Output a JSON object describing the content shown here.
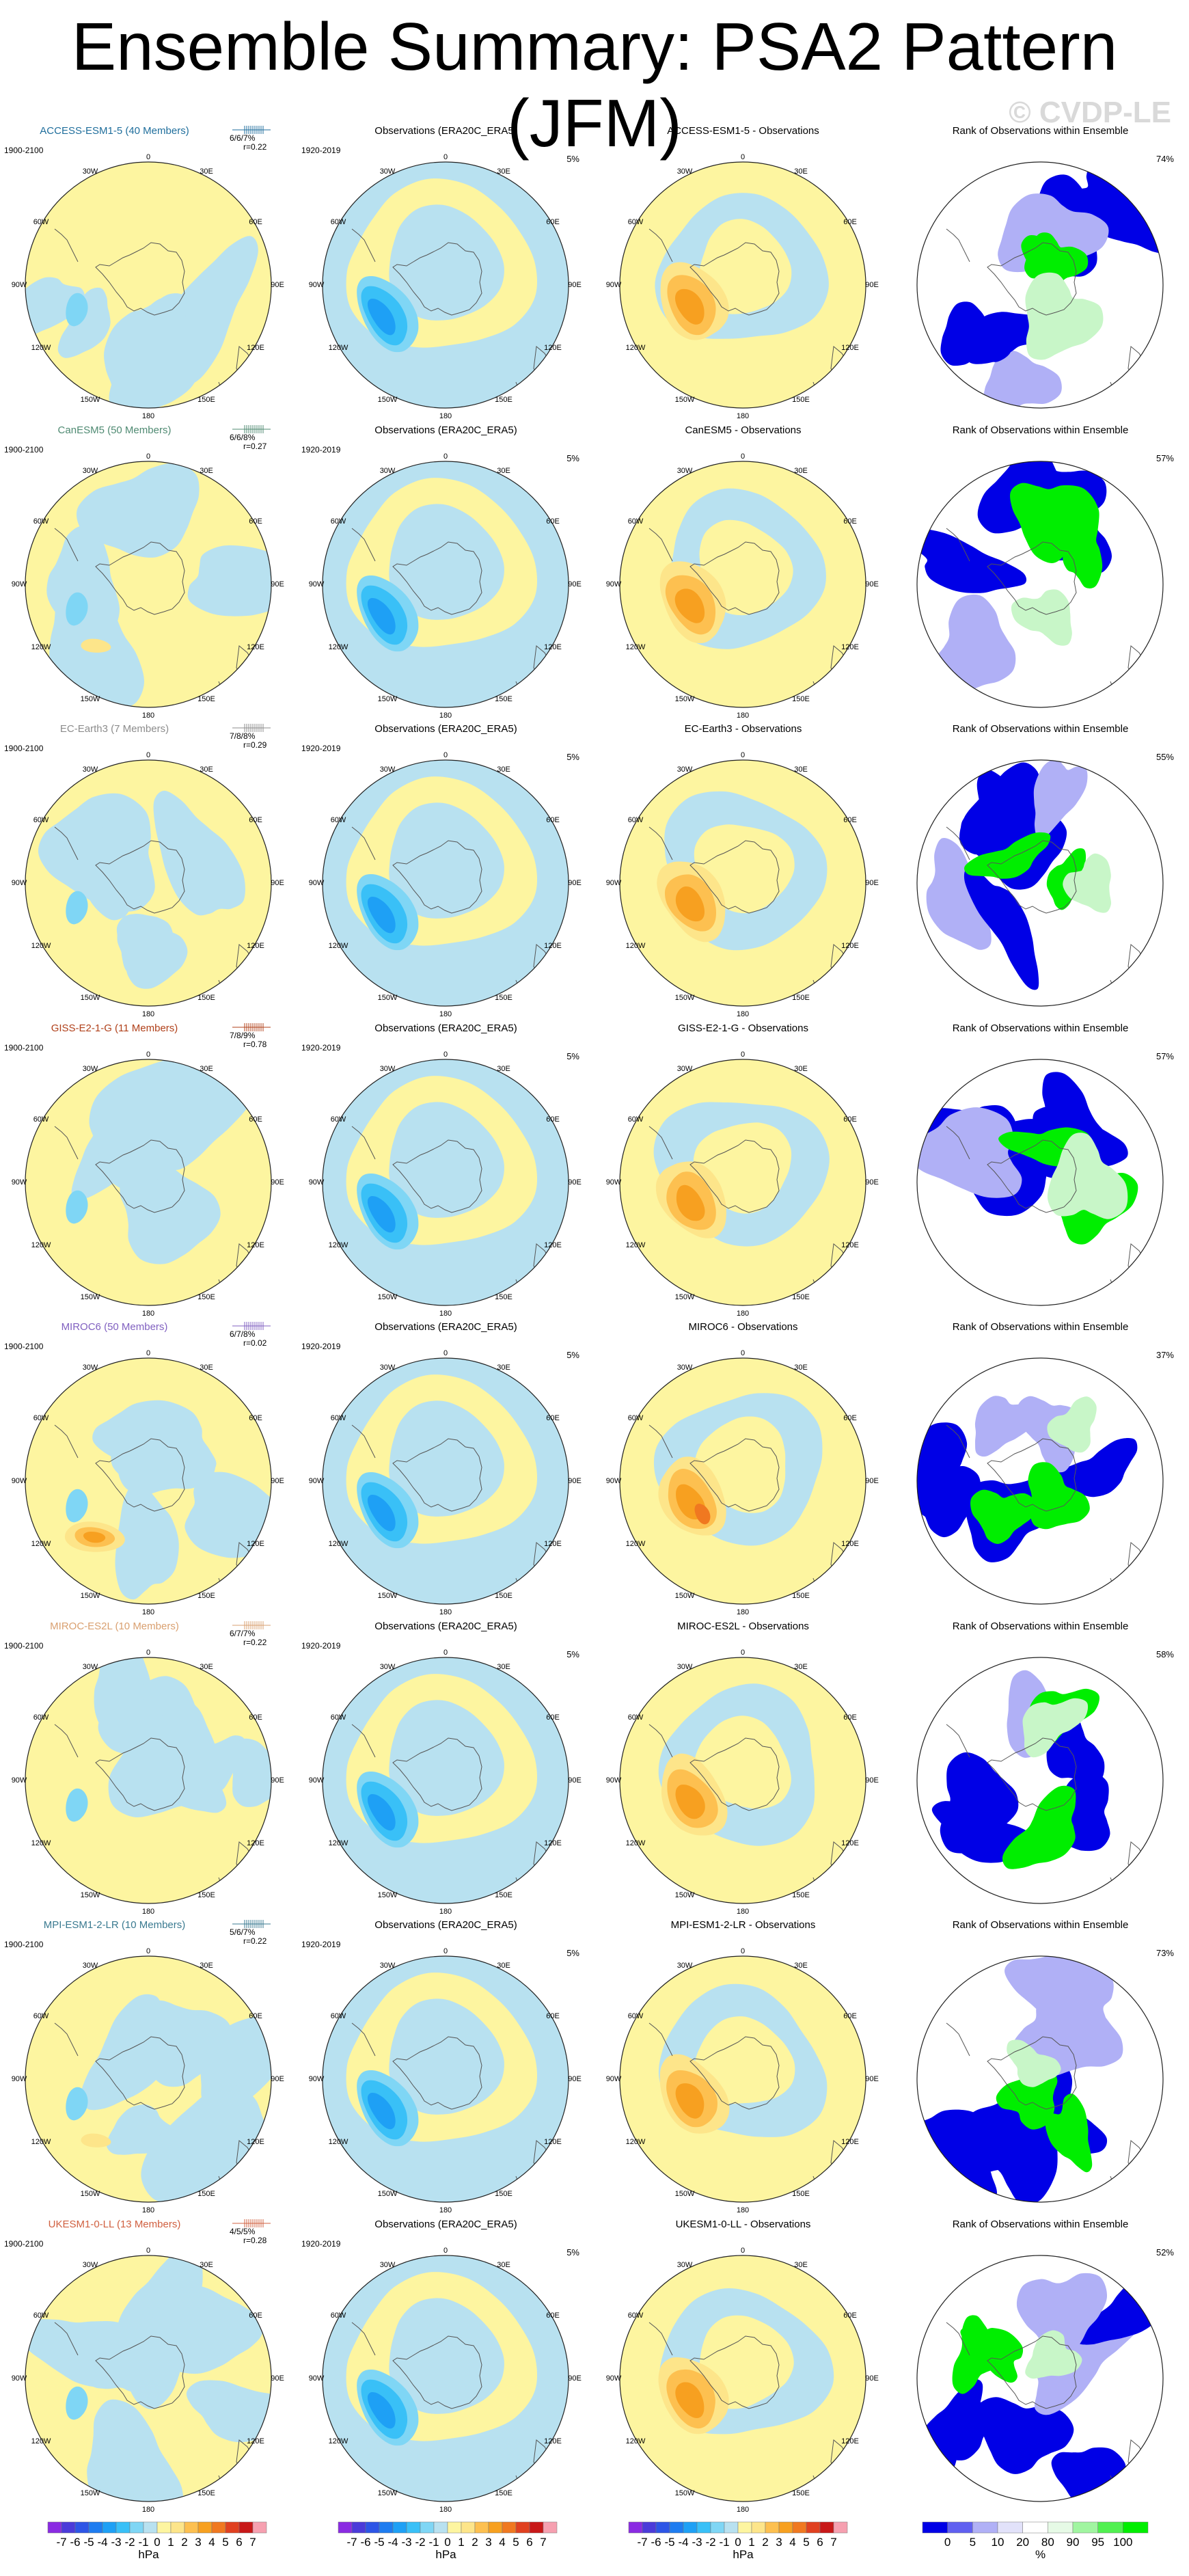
{
  "title": "Ensemble Summary: PSA2 Pattern (JFM)",
  "watermark": "© CVDP-LE",
  "lon_labels": {
    "top": "0",
    "top_left": "30W",
    "top_right": "30E",
    "upper_left": "60W",
    "upper_right": "60E",
    "left": "90W",
    "right": "90E",
    "lower_left": "120W",
    "lower_right": "120E",
    "bottom_left": "150W",
    "bottom_right": "150E",
    "bottom": "180"
  },
  "obs_title": "Observations (ERA20C_ERA5)",
  "obs_period": "1920-2019",
  "obs_pct": "5%",
  "model_period": "1900-2100",
  "rank_title": "Rank of Observations within Ensemble",
  "rows": [
    {
      "model_title": "ACCESS-ESM1-5 (40 Members)",
      "color": "#1f6e9c",
      "stat_a": "6/6/7%",
      "stat_b": "r=0.22",
      "diff_title": "ACCESS-ESM1-5 - Observations",
      "rank_pct": "74%"
    },
    {
      "model_title": "CanESM5 (50 Members)",
      "color": "#4f8a72",
      "stat_a": "6/6/8%",
      "stat_b": "r=0.27",
      "diff_title": "CanESM5 - Observations",
      "rank_pct": "57%"
    },
    {
      "model_title": "EC-Earth3 (7 Members)",
      "color": "#8c8c8c",
      "stat_a": "7/8/8%",
      "stat_b": "r=0.29",
      "diff_title": "EC-Earth3 - Observations",
      "rank_pct": "55%"
    },
    {
      "model_title": "GISS-E2-1-G (11 Members)",
      "color": "#b0401a",
      "stat_a": "7/8/9%",
      "stat_b": "r=0.78",
      "diff_title": "GISS-E2-1-G - Observations",
      "rank_pct": "57%"
    },
    {
      "model_title": "MIROC6 (50 Members)",
      "color": "#8060c0",
      "stat_a": "6/7/8%",
      "stat_b": "r=0.02",
      "diff_title": "MIROC6 - Observations",
      "rank_pct": "37%"
    },
    {
      "model_title": "MIROC-ES2L (10 Members)",
      "color": "#d9a070",
      "stat_a": "6/7/7%",
      "stat_b": "r=0.22",
      "diff_title": "MIROC-ES2L - Observations",
      "rank_pct": "58%"
    },
    {
      "model_title": "MPI-ESM1-2-LR (10 Members)",
      "color": "#3a7a90",
      "stat_a": "5/6/7%",
      "stat_b": "r=0.22",
      "diff_title": "MPI-ESM1-2-LR - Observations",
      "rank_pct": "73%"
    },
    {
      "model_title": "UKESM1-0-LL (13 Members)",
      "color": "#d06040",
      "stat_a": "4/5/5%",
      "stat_b": "r=0.28",
      "diff_title": "UKESM1-0-LL - Observations",
      "rank_pct": "52%"
    }
  ],
  "colorbar_hpa": {
    "ticks": [
      "-7",
      "-6",
      "-5",
      "-4",
      "-3",
      "-2",
      "-1",
      "0",
      "1",
      "2",
      "3",
      "4",
      "5",
      "6",
      "7"
    ],
    "unit": "hPa",
    "colors": [
      "#8a2be2",
      "#4b3bd9",
      "#2d55e6",
      "#1e7cf0",
      "#1ea0f5",
      "#39c0f7",
      "#7fd6f5",
      "#b8e1f0",
      "#fdf5a0",
      "#fde58a",
      "#fdc050",
      "#f7a020",
      "#f07820",
      "#e04020",
      "#c81818",
      "#f6a0b0"
    ]
  },
  "colorbar_pct": {
    "ticks": [
      "0",
      "5",
      "10",
      "20",
      "80",
      "90",
      "95",
      "100"
    ],
    "unit": "%",
    "colors": [
      "#0000e6",
      "#6060f0",
      "#b0b0f6",
      "#e2e2fa",
      "#ffffff",
      "#e6fae6",
      "#a0f5a0",
      "#50f050",
      "#00ee00"
    ]
  },
  "palette": {
    "neg_pale": "#b8e1f0",
    "pos_pale": "#fdf5a0",
    "neg1": "#7fd6f5",
    "neg2": "#39c0f7",
    "neg3": "#1ea0f5",
    "pos1": "#fde58a",
    "pos2": "#fdc050",
    "pos3": "#f7a020",
    "pos4": "#f07820",
    "pos5": "#e04020",
    "rank_low": "#0000e6",
    "rank_low2": "#b0b0f6",
    "rank_high": "#00ee00",
    "rank_high2": "#c8f6c8"
  }
}
